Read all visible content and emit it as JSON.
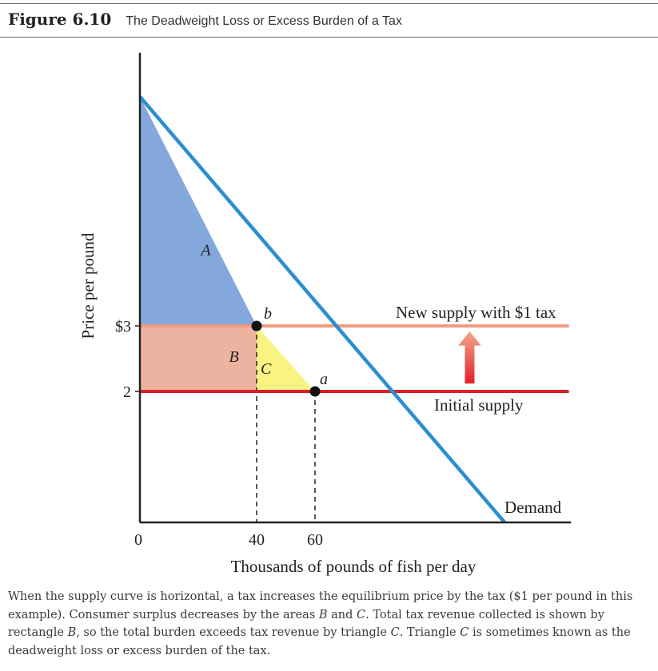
{
  "figure": {
    "number": "Figure 6.10",
    "title": "The Deadweight Loss or Excess Burden of a Tax",
    "caption_parts": [
      {
        "t": "When the supply curve is horizontal, a tax increases the equilibrium price by the tax ($1 per pound in this example). Consumer surplus decreases by the areas ",
        "i": false
      },
      {
        "t": "B",
        "i": true
      },
      {
        "t": " and ",
        "i": false
      },
      {
        "t": "C",
        "i": true
      },
      {
        "t": ". Total tax revenue collected is shown by rectangle ",
        "i": false
      },
      {
        "t": "B",
        "i": true
      },
      {
        "t": ", so the total burden exceeds tax revenue by triangle ",
        "i": false
      },
      {
        "t": "C",
        "i": true
      },
      {
        "t": ". Triangle ",
        "i": false
      },
      {
        "t": "C",
        "i": true
      },
      {
        "t": " is sometimes known as the deadweight loss or excess burden of the tax.",
        "i": false
      }
    ]
  },
  "chart_data": {
    "type": "line",
    "xlabel": "Thousands of pounds of fish per day",
    "ylabel": "Price per pound",
    "x_ticks": [
      {
        "value": 0,
        "label": "0"
      },
      {
        "value": 40,
        "label": "40"
      },
      {
        "value": 60,
        "label": "60"
      }
    ],
    "y_ticks": [
      {
        "value": 2,
        "label": "2"
      },
      {
        "value": 3,
        "label": "$3"
      }
    ],
    "xlim": [
      0,
      147
    ],
    "ylim": [
      0,
      7.1
    ],
    "series": [
      {
        "name": "Demand",
        "x": [
          0,
          125
        ],
        "y": [
          6.5,
          0
        ],
        "color": "#2a8fd1"
      },
      {
        "name": "Initial supply",
        "x": [
          0,
          147
        ],
        "y": [
          2,
          2
        ],
        "color": "#d81e2a"
      },
      {
        "name": "New supply with $1 tax",
        "x": [
          0,
          147
        ],
        "y": [
          3,
          3
        ],
        "color": "#ee9a82"
      }
    ],
    "points": [
      {
        "label": "b",
        "x": 40,
        "y": 3
      },
      {
        "label": "a",
        "x": 60,
        "y": 2
      }
    ],
    "areas": [
      {
        "label": "A",
        "color": "#84a8dc",
        "polygon": [
          [
            0,
            6.5
          ],
          [
            0,
            3
          ],
          [
            40,
            3
          ]
        ]
      },
      {
        "label": "B",
        "color": "#ecb3a0",
        "polygon": [
          [
            0,
            3
          ],
          [
            40,
            3
          ],
          [
            40,
            2
          ],
          [
            0,
            2
          ]
        ]
      },
      {
        "label": "C",
        "color": "#f9f383",
        "polygon": [
          [
            40,
            3
          ],
          [
            40,
            2
          ],
          [
            60,
            2
          ]
        ]
      }
    ],
    "arrow": {
      "from": 2.12,
      "to": 2.92,
      "x": 113,
      "color": "#e0403a"
    }
  }
}
